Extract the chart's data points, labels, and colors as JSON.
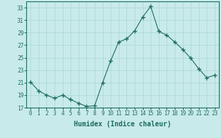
{
  "x": [
    0,
    1,
    2,
    3,
    4,
    5,
    6,
    7,
    8,
    9,
    10,
    11,
    12,
    13,
    14,
    15,
    16,
    17,
    18,
    19,
    20,
    21,
    22,
    23
  ],
  "y": [
    21.1,
    19.7,
    19.0,
    18.5,
    19.0,
    18.3,
    17.7,
    17.2,
    17.3,
    21.0,
    24.5,
    27.5,
    28.0,
    29.3,
    31.5,
    33.2,
    29.2,
    28.6,
    27.5,
    26.3,
    24.9,
    23.2,
    21.8,
    22.2
  ],
  "line_color": "#1a6b5a",
  "marker": "+",
  "marker_size": 4,
  "bg_color": "#c8eaea",
  "grid_color": "#b0d8d8",
  "xlabel": "Humidex (Indice chaleur)",
  "ylim": [
    17,
    34
  ],
  "xlim": [
    -0.5,
    23.5
  ],
  "yticks": [
    17,
    19,
    21,
    23,
    25,
    27,
    29,
    31,
    33
  ],
  "xticks": [
    0,
    1,
    2,
    3,
    4,
    5,
    6,
    7,
    8,
    9,
    10,
    11,
    12,
    13,
    14,
    15,
    16,
    17,
    18,
    19,
    20,
    21,
    22,
    23
  ],
  "tick_fontsize": 5.5,
  "xlabel_fontsize": 7
}
